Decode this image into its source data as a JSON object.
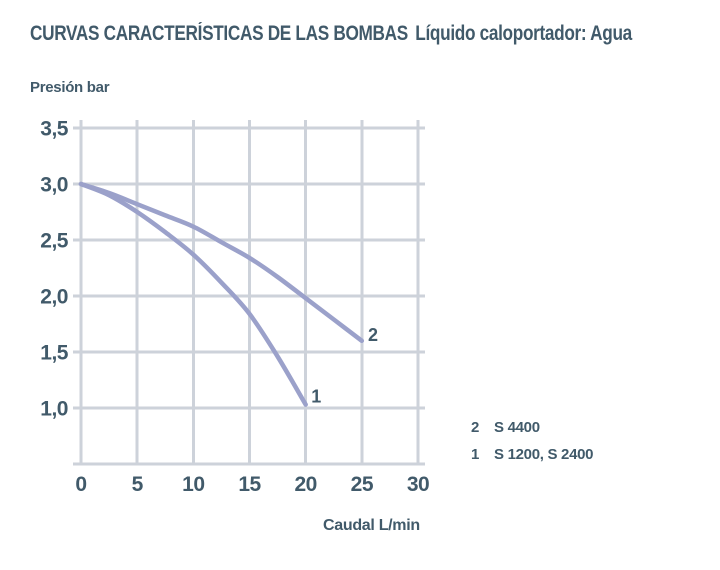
{
  "title": {
    "main": "CURVAS CARACTERÍSTICAS DE LAS BOMBAS",
    "subtitle": "Líquido caloportador: Agua"
  },
  "colors": {
    "text": "#415a6a",
    "grid": "#cdd2da",
    "curve": "#9ba1ca",
    "background": "#ffffff"
  },
  "legend": {
    "rows": [
      {
        "num": "2",
        "label": "S 4400"
      },
      {
        "num": "1",
        "label": "S 1200, S 2400"
      }
    ]
  },
  "chart_data": {
    "type": "line",
    "title": "CURVAS CARACTERÍSTICAS DE LAS BOMBAS",
    "subtitle": "Líquido caloportador: Agua",
    "xlabel": "Caudal L/min",
    "ylabel": "Presión bar",
    "xlim": [
      0,
      30
    ],
    "ylim_drawn": [
      0.5,
      3.5
    ],
    "grid": true,
    "legend_position": "right-bottom",
    "x_ticks": [
      {
        "value": 0,
        "label": "0"
      },
      {
        "value": 5,
        "label": "5"
      },
      {
        "value": 10,
        "label": "10"
      },
      {
        "value": 15,
        "label": "15"
      },
      {
        "value": 20,
        "label": "20"
      },
      {
        "value": 25,
        "label": "25"
      },
      {
        "value": 30,
        "label": "30"
      }
    ],
    "y_ticks": [
      {
        "value": 3.5,
        "label": "3,5"
      },
      {
        "value": 3.0,
        "label": "3,0"
      },
      {
        "value": 2.5,
        "label": "2,5"
      },
      {
        "value": 2.0,
        "label": "2,0"
      },
      {
        "value": 1.5,
        "label": "1,5"
      },
      {
        "value": 1.0,
        "label": "1,0"
      }
    ],
    "y_gridlines": [
      3.5,
      3.0,
      2.5,
      2.0,
      1.5,
      1.0,
      0.5
    ],
    "series": [
      {
        "name": "S 1200, S 2400",
        "curve_label": "1",
        "x": [
          0,
          2.5,
          5,
          7.5,
          10,
          12.5,
          15,
          17.5,
          20
        ],
        "y": [
          3.0,
          2.9,
          2.75,
          2.57,
          2.37,
          2.12,
          1.84,
          1.46,
          1.03
        ],
        "label_pos": {
          "q": 20.5,
          "v": 1.05
        }
      },
      {
        "name": "S 4400",
        "curve_label": "2",
        "x": [
          0,
          2.5,
          5,
          7.5,
          10,
          12.5,
          15,
          17.5,
          20,
          22.5,
          25
        ],
        "y": [
          3.0,
          2.92,
          2.82,
          2.72,
          2.62,
          2.48,
          2.34,
          2.17,
          1.98,
          1.79,
          1.6
        ],
        "label_pos": {
          "q": 25.55,
          "v": 1.6
        }
      }
    ]
  }
}
